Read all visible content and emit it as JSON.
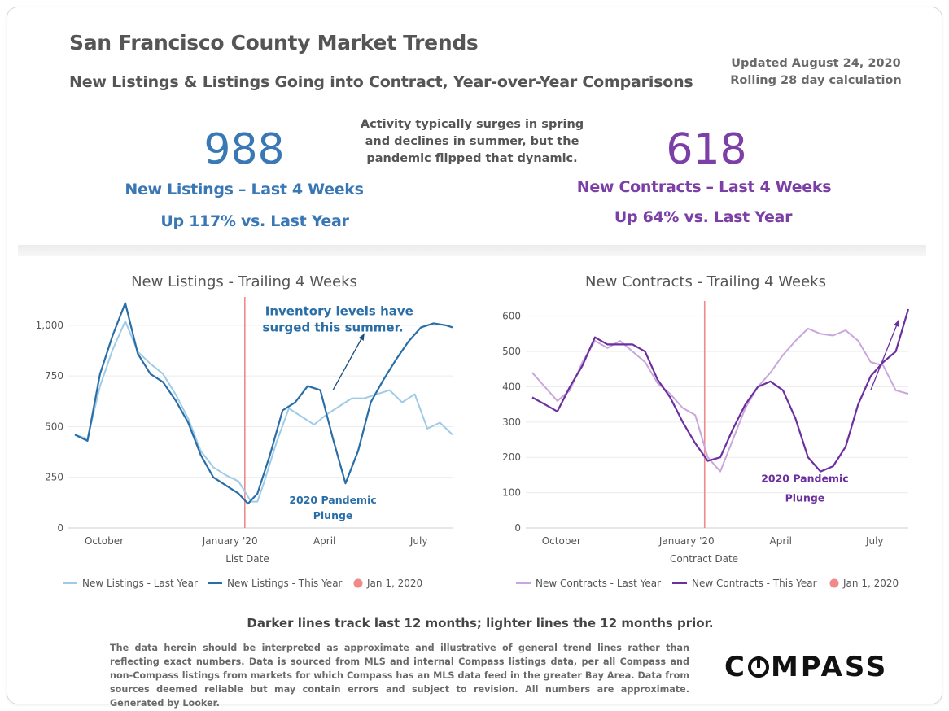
{
  "header": {
    "title": "San Francisco County Market Trends",
    "subtitle": "New Listings & Listings Going into Contract,  Year-over-Year  Comparisons",
    "updated_line1": "Updated August 24, 2020",
    "updated_line2": "Rolling 28 day calculation"
  },
  "note": {
    "line1": "Activity typically surges in spring",
    "line2": "and declines in summer, but the",
    "line3": "pandemic flipped that dynamic."
  },
  "kpi_left": {
    "value": "988",
    "label": "New Listings – Last 4 Weeks",
    "change": "Up 117% vs. Last Year"
  },
  "kpi_right": {
    "value": "618",
    "label": "New Contracts – Last 4 Weeks",
    "change": "Up 64% vs. Last Year"
  },
  "colors": {
    "listings_last_year": "#9fcbe6",
    "listings_this_year": "#2a6ea8",
    "contracts_last_year": "#c9a6dc",
    "contracts_this_year": "#6b2fa0",
    "marker": "#f08a8a",
    "grid": "#ececec"
  },
  "chart_data": [
    {
      "type": "line",
      "title": "New Listings - Trailing 4 Weeks",
      "xlabel": "List Date",
      "ylabel": "",
      "ylim": [
        0,
        1100
      ],
      "yticks": [
        0,
        250,
        500,
        750,
        1000
      ],
      "ytick_labels": [
        "0",
        "250",
        "500",
        "750",
        "1,000"
      ],
      "xticks": [
        "October",
        "January '20",
        "April",
        "July"
      ],
      "xrange": [
        0,
        12
      ],
      "xtick_positions": [
        1.5,
        5.5,
        8.5,
        11.5
      ],
      "marker_x": 5.4,
      "legend_position": "bottom",
      "legend": [
        "New Listings - Last Year",
        "New Listings - This Year",
        "Jan 1, 2020"
      ],
      "annotations": [
        {
          "text": "Inventory levels have",
          "x": 8.4,
          "y": 1050,
          "color": "#2a6ea8"
        },
        {
          "text": "surged this summer.",
          "x": 8.2,
          "y": 970,
          "color": "#2a6ea8"
        },
        {
          "text": "2020 Pandemic",
          "x": 8.2,
          "y": 120,
          "color": "#2a6ea8"
        },
        {
          "text": "Plunge",
          "x": 8.2,
          "y": 45,
          "color": "#2a6ea8"
        }
      ],
      "series": [
        {
          "name": "New Listings - Last Year",
          "x": [
            0,
            0.4,
            0.8,
            1.2,
            1.6,
            2.0,
            2.4,
            2.8,
            3.2,
            3.6,
            4.0,
            4.4,
            4.8,
            5.2,
            5.6,
            5.8,
            6.0,
            6.4,
            6.8,
            7.2,
            7.6,
            8.0,
            8.4,
            8.8,
            9.2,
            9.6,
            10.0,
            10.4,
            10.8,
            11.2,
            11.6,
            12.0
          ],
          "values": [
            460,
            440,
            700,
            880,
            1020,
            870,
            810,
            760,
            660,
            540,
            380,
            300,
            260,
            230,
            130,
            130,
            220,
            420,
            590,
            550,
            510,
            560,
            600,
            640,
            640,
            660,
            680,
            620,
            660,
            490,
            520,
            460
          ]
        },
        {
          "name": "New Listings - This Year",
          "x": [
            0,
            0.4,
            0.8,
            1.2,
            1.6,
            2.0,
            2.4,
            2.8,
            3.2,
            3.6,
            4.0,
            4.4,
            4.8,
            5.2,
            5.5,
            5.8,
            6.2,
            6.6,
            7.0,
            7.4,
            7.8,
            8.2,
            8.6,
            9.0,
            9.4,
            9.8,
            10.2,
            10.6,
            11.0,
            11.4,
            11.8,
            12.0
          ],
          "values": [
            460,
            430,
            760,
            950,
            1110,
            860,
            760,
            720,
            630,
            520,
            360,
            250,
            210,
            170,
            120,
            170,
            360,
            580,
            620,
            700,
            680,
            440,
            220,
            380,
            620,
            730,
            830,
            920,
            990,
            1010,
            1000,
            990
          ]
        }
      ]
    },
    {
      "type": "line",
      "title": "New Contracts - Trailing 4 Weeks",
      "xlabel": "Contract Date",
      "ylabel": "",
      "ylim": [
        0,
        620
      ],
      "yticks": [
        0,
        100,
        200,
        300,
        400,
        500,
        600
      ],
      "ytick_labels": [
        "0",
        "100",
        "200",
        "300",
        "400",
        "500",
        "600"
      ],
      "xticks": [
        "October",
        "January '20",
        "April",
        "July"
      ],
      "xrange": [
        0,
        12
      ],
      "xtick_positions": [
        1.5,
        5.5,
        8.5,
        11.5
      ],
      "marker_x": 5.5,
      "legend_position": "bottom",
      "legend": [
        "New Contracts - Last Year",
        "New Contracts - This Year",
        "Jan 1, 2020"
      ],
      "annotations": [
        {
          "text": "2020 Pandemic",
          "x": 8.7,
          "y": 130,
          "color": "#6b2fa0"
        },
        {
          "text": "Plunge",
          "x": 8.7,
          "y": 75,
          "color": "#6b2fa0"
        }
      ],
      "series": [
        {
          "name": "New Contracts - Last Year",
          "x": [
            0,
            0.4,
            0.8,
            1.2,
            1.6,
            2.0,
            2.4,
            2.8,
            3.2,
            3.6,
            4.0,
            4.4,
            4.8,
            5.2,
            5.6,
            6.0,
            6.4,
            6.8,
            7.2,
            7.6,
            8.0,
            8.4,
            8.8,
            9.2,
            9.6,
            10.0,
            10.4,
            10.8,
            11.2,
            11.6,
            12.0
          ],
          "values": [
            440,
            400,
            360,
            390,
            470,
            530,
            510,
            530,
            500,
            470,
            410,
            380,
            340,
            320,
            200,
            160,
            250,
            340,
            400,
            440,
            490,
            530,
            565,
            550,
            545,
            560,
            530,
            470,
            460,
            390,
            380
          ]
        },
        {
          "name": "New Contracts - This Year",
          "x": [
            0,
            0.4,
            0.8,
            1.2,
            1.6,
            2.0,
            2.4,
            2.8,
            3.2,
            3.6,
            4.0,
            4.4,
            4.8,
            5.2,
            5.6,
            6.0,
            6.4,
            6.8,
            7.2,
            7.6,
            8.0,
            8.4,
            8.8,
            9.2,
            9.6,
            10.0,
            10.4,
            10.8,
            11.2,
            11.6,
            12.0
          ],
          "values": [
            370,
            350,
            330,
            400,
            460,
            540,
            520,
            520,
            520,
            500,
            420,
            370,
            300,
            240,
            190,
            200,
            280,
            350,
            400,
            415,
            390,
            310,
            200,
            160,
            175,
            230,
            350,
            430,
            470,
            500,
            620
          ]
        }
      ]
    }
  ],
  "footer": {
    "summary": "Darker lines track last 12 months; lighter lines the 12 months prior.",
    "disclaimer": "The data herein should be interpreted as approximate and illustrative of general trend lines rather than reflecting exact numbers. Data is sourced from MLS and internal Compass listings data, per all Compass and non-Compass listings from markets for which Compass has an MLS data feed in the greater Bay Area. Data from sources deemed reliable but may contain errors and subject to revision. All numbers are approximate. Generated by Looker.",
    "logo_prefix": "C",
    "logo_suffix": "MPASS"
  }
}
